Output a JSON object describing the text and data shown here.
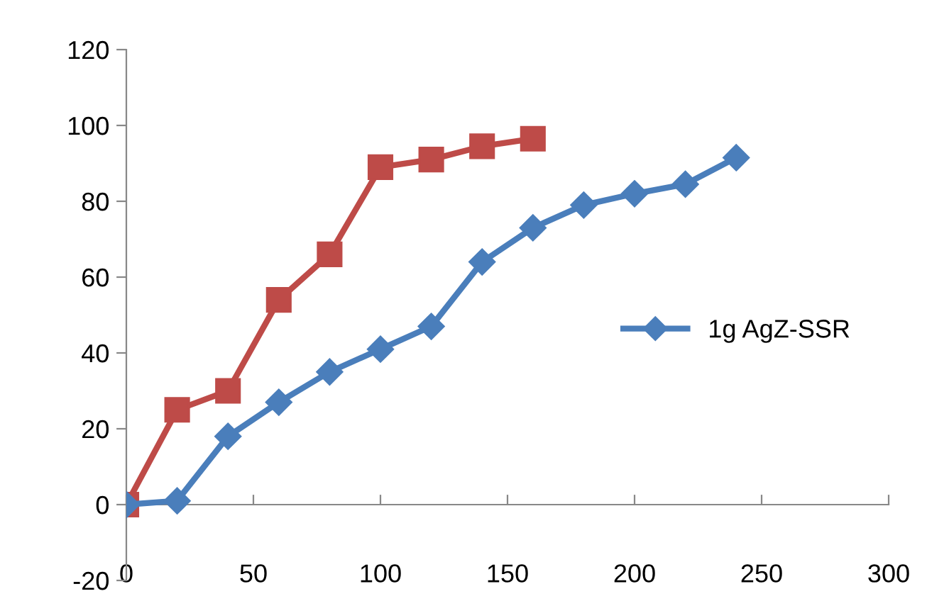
{
  "chart_data": {
    "type": "line",
    "series": [
      {
        "name": "1g AgZ-SSR",
        "color": "#4a7ebb",
        "marker": "diamond",
        "x": [
          0,
          20,
          40,
          60,
          80,
          100,
          120,
          140,
          160,
          180,
          200,
          220,
          240
        ],
        "values": [
          0,
          1,
          18,
          27,
          35,
          41,
          47,
          64,
          73,
          79,
          82,
          84.5,
          91.5
        ]
      },
      {
        "color": "#be4b48",
        "marker": "square",
        "x": [
          0,
          20,
          40,
          60,
          80,
          100,
          120,
          140,
          160
        ],
        "values": [
          0,
          25,
          30,
          54,
          66,
          89,
          91,
          94.5,
          96.5
        ]
      }
    ],
    "xlim": [
      0,
      300
    ],
    "xticks": [
      0,
      50,
      100,
      150,
      200,
      250,
      300
    ],
    "ylim": [
      -20,
      120
    ],
    "yticks": [
      -20,
      0,
      20,
      40,
      60,
      80,
      100,
      120
    ],
    "grid": false,
    "legend": "right"
  }
}
